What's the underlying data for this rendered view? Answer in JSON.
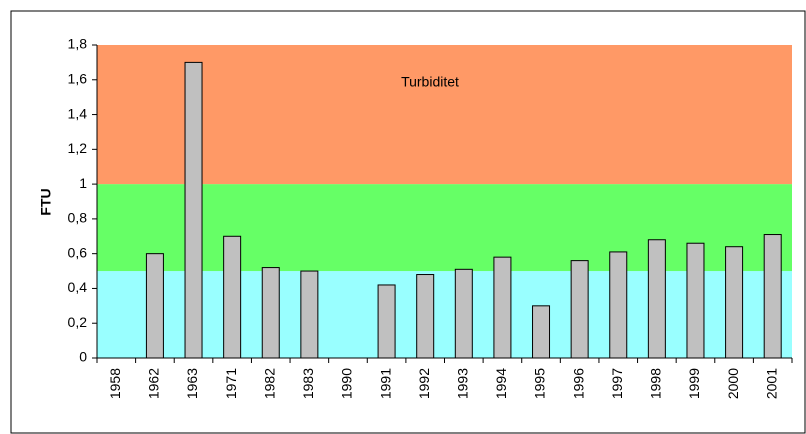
{
  "chart_data": {
    "type": "bar",
    "y_label": "FTU",
    "annotation": "Turbiditet",
    "categories": [
      "1958",
      "1962",
      "1963",
      "1971",
      "1982",
      "1983",
      "1990",
      "1991",
      "1992",
      "1993",
      "1994",
      "1995",
      "1996",
      "1997",
      "1998",
      "1999",
      "2000",
      "2001"
    ],
    "values": [
      null,
      0.6,
      1.7,
      0.7,
      0.52,
      0.5,
      null,
      0.42,
      0.48,
      0.51,
      0.58,
      0.3,
      0.56,
      0.61,
      0.68,
      0.66,
      0.64,
      0.71
    ],
    "color": "#c0c0c0",
    "bands": [
      {
        "from": 0,
        "to": 0.5,
        "color": "#99ffff"
      },
      {
        "from": 0.5,
        "to": 1,
        "color": "#66ff66"
      },
      {
        "from": 1,
        "to": 1.8,
        "color": "#ff9966"
      }
    ],
    "ylim": [
      0,
      1.8
    ],
    "yticks": [
      0,
      {
        "value": 0.2,
        "label": "0,2"
      },
      {
        "value": 0.4,
        "label": "0,4"
      },
      {
        "value": 0.6,
        "label": "0,6"
      },
      {
        "value": 0.8,
        "label": "0,8"
      },
      1,
      {
        "value": 1.2,
        "label": "1,2"
      },
      {
        "value": 1.4,
        "label": "1,4"
      },
      {
        "value": 1.6,
        "label": "1,6"
      },
      {
        "value": 1.8,
        "label": "1,8"
      }
    ]
  }
}
